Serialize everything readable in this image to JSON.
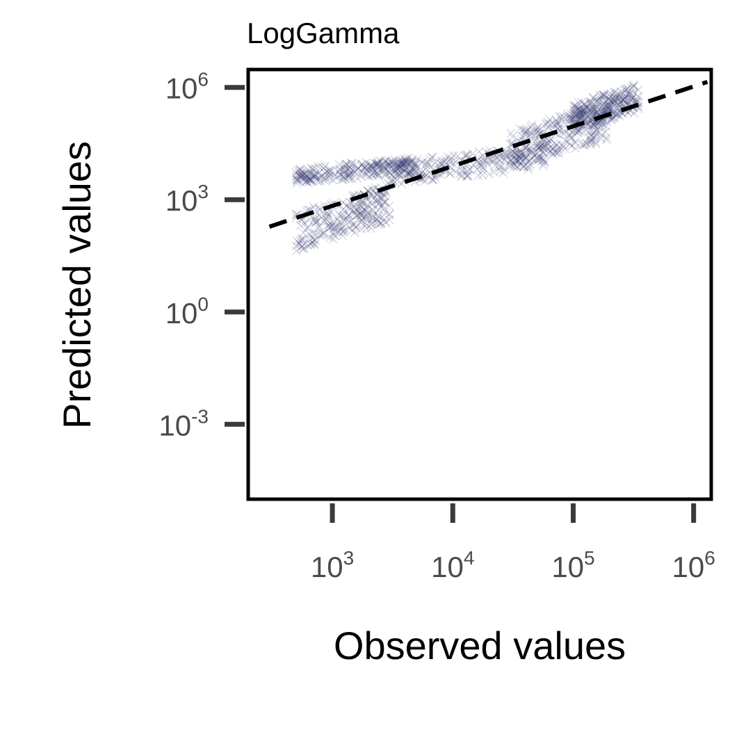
{
  "chart_data": {
    "type": "scatter",
    "title": "LogGamma",
    "xlabel": "Observed values",
    "ylabel": "Predicted values",
    "x_scale": "log",
    "y_scale": "log",
    "xlim": [
      200,
      1400000
    ],
    "ylim": [
      1e-05,
      3000000
    ],
    "x_ticks": [
      {
        "value": 1000,
        "base": "10",
        "exp": "3"
      },
      {
        "value": 10000,
        "base": "10",
        "exp": "4"
      },
      {
        "value": 100000,
        "base": "10",
        "exp": "5"
      },
      {
        "value": 1000000,
        "base": "10",
        "exp": "6"
      }
    ],
    "y_ticks": [
      {
        "value": 1000000,
        "base": "10",
        "exp": "6"
      },
      {
        "value": 1000,
        "base": "10",
        "exp": "3"
      },
      {
        "value": 1,
        "base": "10",
        "exp": "0"
      },
      {
        "value": 0.001,
        "base": "10",
        "exp": "-3"
      }
    ],
    "grid": false,
    "marker": "x",
    "point_color": "#2b2d6b",
    "reference_line": {
      "style": "dashed",
      "color": "#000000",
      "x": [
        300,
        1300000
      ],
      "y": [
        190,
        1400000
      ]
    },
    "point_bands": [
      {
        "x_range": [
          500,
          3000
        ],
        "y_low": 60,
        "y_high": 2000
      },
      {
        "x_range": [
          500,
          5000
        ],
        "y_low": 3000,
        "y_high": 12000
      },
      {
        "x_range": [
          3000,
          60000
        ],
        "y_low": 3000,
        "y_high": 25000
      },
      {
        "x_range": [
          30000,
          200000
        ],
        "y_low": 10000,
        "y_high": 300000
      },
      {
        "x_range": [
          100000,
          350000
        ],
        "y_low": 80000,
        "y_high": 1000000
      }
    ]
  }
}
